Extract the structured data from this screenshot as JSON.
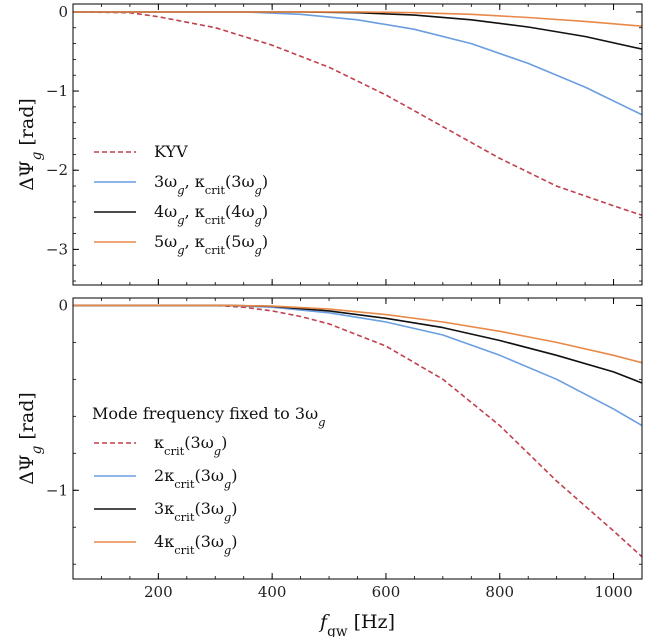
{
  "chart_data": [
    {
      "type": "line",
      "xlim": [
        50,
        1050
      ],
      "ylim": [
        -3.45,
        0.1
      ],
      "yticks": [
        0,
        -1,
        -2,
        -3
      ],
      "ytick_labels": [
        "0",
        "−1",
        "−2",
        "−3"
      ],
      "ylabel": "ΔΨ_g [rad]",
      "ylabel_parts": {
        "main": "ΔΨ",
        "sub": "g",
        "unit": "[rad]"
      },
      "legend_title": "",
      "legend_position": "lower-left",
      "series": [
        {
          "name": "KYV",
          "legend": {
            "main": "KYV"
          },
          "color": "#c0404d",
          "dash": true,
          "x": [
            50,
            150,
            200,
            300,
            400,
            500,
            600,
            700,
            800,
            900,
            1000,
            1050
          ],
          "y": [
            0,
            -0.01,
            -0.06,
            -0.2,
            -0.42,
            -0.7,
            -1.05,
            -1.45,
            -1.85,
            -2.2,
            -2.45,
            -2.57
          ]
        },
        {
          "name": "3ω_g, κ_crit(3ω_g)",
          "legend": {
            "main": "3ω",
            "sub1": "g",
            "mid": ", κ",
            "sub2": "crit",
            "tail": "(3ω",
            "sub3": "g",
            "end": ")"
          },
          "color": "#6a9ee0",
          "dash": false,
          "x": [
            50,
            350,
            450,
            550,
            650,
            750,
            850,
            950,
            1050
          ],
          "y": [
            0,
            0,
            -0.03,
            -0.1,
            -0.22,
            -0.4,
            -0.65,
            -0.95,
            -1.3
          ]
        },
        {
          "name": "4ω_g, κ_crit(4ω_g)",
          "legend": {
            "main": "4ω",
            "sub1": "g",
            "mid": ", κ",
            "sub2": "crit",
            "tail": "(4ω",
            "sub3": "g",
            "end": ")"
          },
          "color": "#111111",
          "dash": false,
          "x": [
            50,
            450,
            550,
            650,
            750,
            850,
            950,
            1050
          ],
          "y": [
            0,
            0,
            -0.01,
            -0.04,
            -0.1,
            -0.19,
            -0.31,
            -0.47
          ]
        },
        {
          "name": "5ω_g, κ_crit(5ω_g)",
          "legend": {
            "main": "5ω",
            "sub1": "g",
            "mid": ", κ",
            "sub2": "crit",
            "tail": "(5ω",
            "sub3": "g",
            "end": ")"
          },
          "color": "#e8894a",
          "dash": false,
          "x": [
            50,
            550,
            650,
            750,
            850,
            950,
            1050
          ],
          "y": [
            0,
            0,
            -0.01,
            -0.03,
            -0.07,
            -0.12,
            -0.18
          ]
        }
      ]
    },
    {
      "type": "line",
      "xlim": [
        50,
        1050
      ],
      "ylim": [
        -1.48,
        0.04
      ],
      "xticks": [
        200,
        400,
        600,
        800,
        1000
      ],
      "xtick_labels": [
        "200",
        "400",
        "600",
        "800",
        "1000"
      ],
      "yticks": [
        0,
        -1
      ],
      "ytick_labels": [
        "0",
        "−1"
      ],
      "xlabel": "f_gw [Hz]",
      "xlabel_parts": {
        "main": "f",
        "sub": "gw",
        "unit": "[Hz]"
      },
      "ylabel": "ΔΨ_g [rad]",
      "ylabel_parts": {
        "main": "ΔΨ",
        "sub": "g",
        "unit": "[rad]"
      },
      "legend_title": "Mode frequency fixed to 3ω_g",
      "legend_title_parts": {
        "main": "Mode frequency fixed to 3ω",
        "sub": "g"
      },
      "legend_position": "lower-left",
      "series": [
        {
          "name": "κ_crit(3ω_g)",
          "legend": {
            "main": "",
            "mid": "κ",
            "sub2": "crit",
            "tail": "(3ω",
            "sub3": "g",
            "end": ")"
          },
          "color": "#c0404d",
          "dash": true,
          "x": [
            50,
            300,
            350,
            400,
            450,
            500,
            600,
            700,
            800,
            900,
            1000,
            1050
          ],
          "y": [
            0,
            0,
            -0.01,
            -0.03,
            -0.06,
            -0.1,
            -0.22,
            -0.4,
            -0.65,
            -0.95,
            -1.22,
            -1.36
          ]
        },
        {
          "name": "2κ_crit(3ω_g)",
          "legend": {
            "main": "2",
            "mid": "κ",
            "sub2": "crit",
            "tail": "(3ω",
            "sub3": "g",
            "end": ")"
          },
          "color": "#6a9ee0",
          "dash": false,
          "x": [
            50,
            320,
            400,
            500,
            600,
            700,
            800,
            900,
            1000,
            1050
          ],
          "y": [
            0,
            0,
            -0.01,
            -0.04,
            -0.09,
            -0.16,
            -0.27,
            -0.4,
            -0.56,
            -0.65
          ]
        },
        {
          "name": "3κ_crit(3ω_g)",
          "legend": {
            "main": "3",
            "mid": "κ",
            "sub2": "crit",
            "tail": "(3ω",
            "sub3": "g",
            "end": ")"
          },
          "color": "#111111",
          "dash": false,
          "x": [
            50,
            320,
            400,
            500,
            600,
            700,
            800,
            900,
            1000,
            1050
          ],
          "y": [
            0,
            0,
            -0.005,
            -0.03,
            -0.07,
            -0.12,
            -0.19,
            -0.27,
            -0.36,
            -0.42
          ]
        },
        {
          "name": "4κ_crit(3ω_g)",
          "legend": {
            "main": "4",
            "mid": "κ",
            "sub2": "crit",
            "tail": "(3ω",
            "sub3": "g",
            "end": ")"
          },
          "color": "#e8894a",
          "dash": false,
          "x": [
            50,
            320,
            400,
            500,
            600,
            700,
            800,
            900,
            1000,
            1050
          ],
          "y": [
            0,
            0,
            -0.004,
            -0.02,
            -0.05,
            -0.09,
            -0.14,
            -0.2,
            -0.27,
            -0.31
          ]
        }
      ]
    }
  ]
}
